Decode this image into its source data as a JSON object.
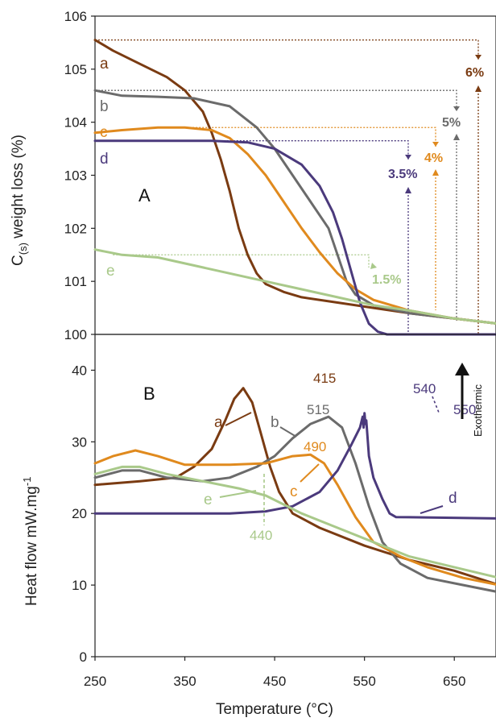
{
  "chart_data": [
    {
      "panel": "A",
      "type": "line",
      "xlabel": "Temperature (°C)",
      "ylabel": "C(s) weight loss (%)",
      "ylabel_main": "C",
      "ylabel_sub": "(s)",
      "ylabel_rest": " weight loss (%)",
      "xlim": [
        250,
        700
      ],
      "ylim": [
        100,
        106
      ],
      "yticks": [
        100,
        101,
        102,
        103,
        104,
        105,
        106
      ],
      "series": [
        {
          "name": "a",
          "color": "#7a3b12",
          "points": [
            [
              250,
              105.55
            ],
            [
              270,
              105.35
            ],
            [
              300,
              105.1
            ],
            [
              330,
              104.85
            ],
            [
              350,
              104.6
            ],
            [
              370,
              104.2
            ],
            [
              380,
              103.8
            ],
            [
              390,
              103.3
            ],
            [
              400,
              102.7
            ],
            [
              410,
              102.0
            ],
            [
              420,
              101.5
            ],
            [
              430,
              101.15
            ],
            [
              440,
              100.95
            ],
            [
              460,
              100.8
            ],
            [
              480,
              100.7
            ],
            [
              520,
              100.6
            ],
            [
              560,
              100.5
            ],
            [
              600,
              100.4
            ],
            [
              650,
              100.3
            ],
            [
              700,
              100.2
            ]
          ]
        },
        {
          "name": "b",
          "color": "#6b6b6b",
          "points": [
            [
              250,
              104.6
            ],
            [
              280,
              104.5
            ],
            [
              320,
              104.48
            ],
            [
              360,
              104.45
            ],
            [
              400,
              104.3
            ],
            [
              430,
              103.9
            ],
            [
              450,
              103.5
            ],
            [
              470,
              103.0
            ],
            [
              490,
              102.5
            ],
            [
              510,
              102.0
            ],
            [
              520,
              101.5
            ],
            [
              530,
              101.0
            ],
            [
              540,
              100.75
            ],
            [
              560,
              100.55
            ],
            [
              600,
              100.4
            ],
            [
              650,
              100.3
            ],
            [
              700,
              100.2
            ]
          ]
        },
        {
          "name": "c",
          "color": "#e08a1e",
          "points": [
            [
              250,
              103.8
            ],
            [
              280,
              103.85
            ],
            [
              320,
              103.9
            ],
            [
              350,
              103.9
            ],
            [
              380,
              103.85
            ],
            [
              400,
              103.7
            ],
            [
              420,
              103.4
            ],
            [
              440,
              103.0
            ],
            [
              460,
              102.5
            ],
            [
              480,
              102.0
            ],
            [
              500,
              101.55
            ],
            [
              520,
              101.15
            ],
            [
              540,
              100.85
            ],
            [
              560,
              100.65
            ],
            [
              600,
              100.45
            ],
            [
              650,
              100.3
            ],
            [
              700,
              100.2
            ]
          ]
        },
        {
          "name": "d",
          "color": "#4b3a7c",
          "points": [
            [
              250,
              103.65
            ],
            [
              300,
              103.65
            ],
            [
              380,
              103.65
            ],
            [
              420,
              103.62
            ],
            [
              450,
              103.5
            ],
            [
              480,
              103.2
            ],
            [
              500,
              102.8
            ],
            [
              515,
              102.3
            ],
            [
              525,
              101.8
            ],
            [
              535,
              101.2
            ],
            [
              545,
              100.6
            ],
            [
              555,
              100.2
            ],
            [
              565,
              100.05
            ],
            [
              575,
              100.0
            ],
            [
              700,
              100.0
            ]
          ]
        },
        {
          "name": "e",
          "color": "#a9c98a",
          "points": [
            [
              250,
              101.6
            ],
            [
              280,
              101.5
            ],
            [
              320,
              101.45
            ],
            [
              360,
              101.3
            ],
            [
              400,
              101.15
            ],
            [
              440,
              101.0
            ],
            [
              480,
              100.85
            ],
            [
              520,
              100.7
            ],
            [
              560,
              100.55
            ],
            [
              600,
              100.45
            ],
            [
              650,
              100.3
            ],
            [
              700,
              100.2
            ]
          ]
        }
      ],
      "annotations": [
        {
          "text": "6%",
          "color": "#7a3b12"
        },
        {
          "text": "5%",
          "color": "#6b6b6b"
        },
        {
          "text": "4%",
          "color": "#e08a1e"
        },
        {
          "text": "3.5%",
          "color": "#4b3a7c"
        },
        {
          "text": "1.5%",
          "color": "#a9c98a"
        }
      ]
    },
    {
      "panel": "B",
      "type": "line",
      "xlabel": "Temperature (°C)",
      "ylabel": "Heat flow mW.mg-1",
      "ylabel_main": "Heat flow mW.mg",
      "ylabel_sup": "-1",
      "xlim": [
        250,
        700
      ],
      "xticks": [
        250,
        350,
        450,
        550,
        650
      ],
      "ylim": [
        0,
        45
      ],
      "yticks": [
        0,
        10,
        20,
        30,
        40
      ],
      "series": [
        {
          "name": "a",
          "color": "#7a3b12",
          "points": [
            [
              250,
              24
            ],
            [
              300,
              24.5
            ],
            [
              340,
              25
            ],
            [
              360,
              26.5
            ],
            [
              380,
              29
            ],
            [
              395,
              33
            ],
            [
              405,
              36
            ],
            [
              415,
              37.5
            ],
            [
              425,
              35.5
            ],
            [
              435,
              31
            ],
            [
              445,
              26.5
            ],
            [
              455,
              23
            ],
            [
              470,
              20
            ],
            [
              500,
              18
            ],
            [
              550,
              15.5
            ],
            [
              600,
              13.5
            ],
            [
              650,
              12
            ],
            [
              700,
              10
            ]
          ]
        },
        {
          "name": "b",
          "color": "#6b6b6b",
          "points": [
            [
              250,
              25
            ],
            [
              280,
              26
            ],
            [
              300,
              26
            ],
            [
              330,
              25
            ],
            [
              370,
              24.5
            ],
            [
              400,
              25
            ],
            [
              430,
              26.5
            ],
            [
              450,
              28
            ],
            [
              470,
              30.5
            ],
            [
              490,
              32.5
            ],
            [
              510,
              33.5
            ],
            [
              525,
              32
            ],
            [
              540,
              27
            ],
            [
              555,
              21
            ],
            [
              570,
              16
            ],
            [
              590,
              13
            ],
            [
              620,
              11
            ],
            [
              660,
              10
            ],
            [
              700,
              9
            ]
          ]
        },
        {
          "name": "c",
          "color": "#e08a1e",
          "points": [
            [
              250,
              27
            ],
            [
              270,
              28
            ],
            [
              295,
              28.8
            ],
            [
              320,
              28
            ],
            [
              350,
              26.8
            ],
            [
              400,
              26.8
            ],
            [
              440,
              27
            ],
            [
              470,
              28
            ],
            [
              490,
              28.2
            ],
            [
              505,
              27
            ],
            [
              520,
              24
            ],
            [
              540,
              19.5
            ],
            [
              560,
              16
            ],
            [
              590,
              14
            ],
            [
              620,
              12.5
            ],
            [
              660,
              11
            ],
            [
              700,
              10
            ]
          ]
        },
        {
          "name": "d",
          "color": "#4b3a7c",
          "points": [
            [
              250,
              20
            ],
            [
              300,
              20
            ],
            [
              350,
              20
            ],
            [
              400,
              20
            ],
            [
              440,
              20.3
            ],
            [
              470,
              21
            ],
            [
              500,
              23
            ],
            [
              520,
              26
            ],
            [
              535,
              29.5
            ],
            [
              545,
              32
            ],
            [
              548,
              33.5
            ],
            [
              549,
              32
            ],
            [
              550,
              34
            ],
            [
              551,
              32.5
            ],
            [
              552,
              33
            ],
            [
              555,
              28
            ],
            [
              560,
              25
            ],
            [
              570,
              22
            ],
            [
              578,
              20
            ],
            [
              585,
              19.5
            ],
            [
              700,
              19.3
            ]
          ]
        },
        {
          "name": "e",
          "color": "#a9c98a",
          "points": [
            [
              250,
              25.5
            ],
            [
              280,
              26.5
            ],
            [
              300,
              26.5
            ],
            [
              330,
              25.5
            ],
            [
              370,
              24.5
            ],
            [
              410,
              23.5
            ],
            [
              440,
              22.5
            ],
            [
              480,
              20
            ],
            [
              520,
              18
            ],
            [
              560,
              16
            ],
            [
              600,
              14
            ],
            [
              650,
              12.5
            ],
            [
              700,
              11
            ]
          ]
        }
      ],
      "peak_labels": [
        {
          "text": "415",
          "color": "#7a3b12"
        },
        {
          "text": "515",
          "color": "#6b6b6b"
        },
        {
          "text": "490",
          "color": "#e08a1e"
        },
        {
          "text": "540",
          "color": "#4b3a7c"
        },
        {
          "text": "550",
          "color": "#4b3a7c"
        },
        {
          "text": "440",
          "color": "#a9c98a"
        }
      ],
      "exothermic_label": "Exothermic"
    }
  ]
}
